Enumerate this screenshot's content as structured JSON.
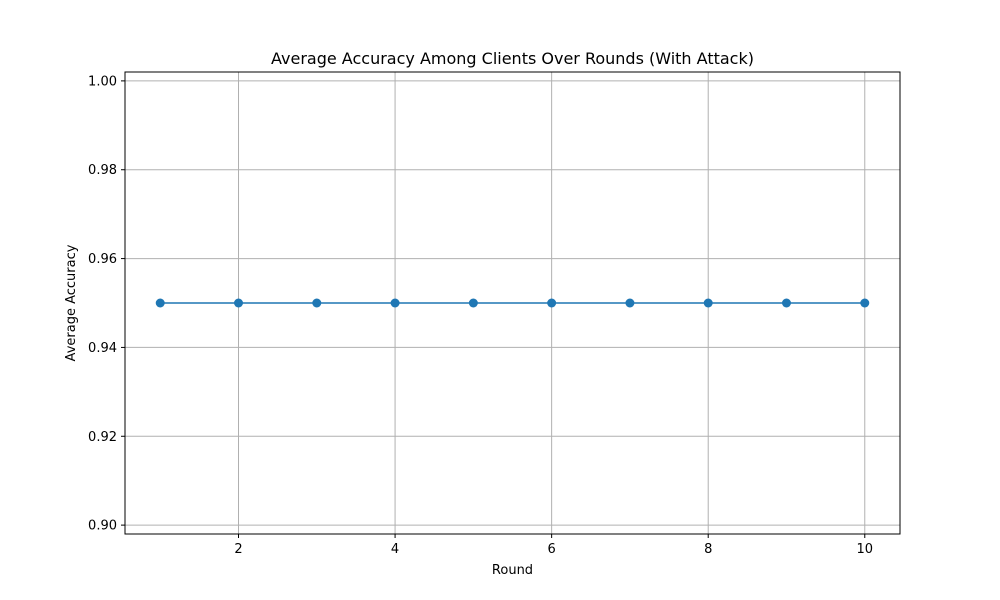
{
  "chart_data": {
    "type": "line",
    "title": "Average Accuracy Among Clients Over Rounds (With Attack)",
    "xlabel": "Round",
    "ylabel": "Average Accuracy",
    "x": [
      1,
      2,
      3,
      4,
      5,
      6,
      7,
      8,
      9,
      10
    ],
    "series": [
      {
        "values": [
          0.95,
          0.95,
          0.95,
          0.95,
          0.95,
          0.95,
          0.95,
          0.95,
          0.95,
          0.95
        ],
        "color": "#1f77b4",
        "marker": "circle"
      }
    ],
    "xlim": [
      0.55,
      10.45
    ],
    "ylim": [
      0.898,
      1.002
    ],
    "xticks": [
      2,
      4,
      6,
      8,
      10
    ],
    "xtick_labels": [
      "2",
      "4",
      "6",
      "8",
      "10"
    ],
    "yticks": [
      0.9,
      0.92,
      0.94,
      0.96,
      0.98,
      1.0
    ],
    "ytick_labels": [
      "0.90",
      "0.92",
      "0.94",
      "0.96",
      "0.98",
      "1.00"
    ],
    "grid": true,
    "legend": "none"
  }
}
